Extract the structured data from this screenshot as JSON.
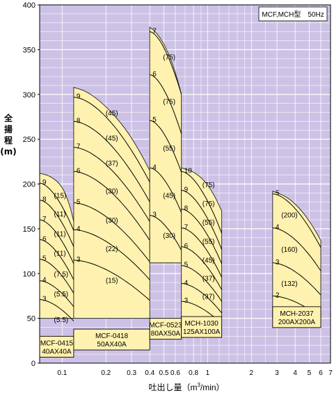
{
  "chart_data": {
    "type": "area",
    "title": "MCF,MCH型　50Hz",
    "ylabel": [
      "全",
      "揚",
      "程",
      "(m)"
    ],
    "xlabel_parts": {
      "prefix": "吐出し量（m",
      "sup": "3",
      "suffix": "/min）"
    },
    "x_scale": "log",
    "xlim": [
      0.07,
      7
    ],
    "ylim": [
      0,
      400
    ],
    "x_ticks": [
      {
        "v": 0.1,
        "label": "0.1"
      },
      {
        "v": 0.2,
        "label": "0.2"
      },
      {
        "v": 0.3,
        "label": "0.3"
      },
      {
        "v": 0.4,
        "label": "0.4"
      },
      {
        "v": 0.5,
        "label": "0.5"
      },
      {
        "v": 0.6,
        "label": "0.6"
      },
      {
        "v": 0.8,
        "label": "0.8"
      },
      {
        "v": 1,
        "label": "1"
      },
      {
        "v": 2,
        "label": "2"
      },
      {
        "v": 3,
        "label": "3"
      },
      {
        "v": 4,
        "label": "4"
      },
      {
        "v": 5,
        "label": "5"
      },
      {
        "v": 6,
        "label": "6"
      },
      {
        "v": 7,
        "label": "7"
      }
    ],
    "x_minor": [
      0.7,
      0.9,
      1.2,
      1.4,
      1.6,
      1.8,
      2.5
    ],
    "y_ticks": [
      0,
      50,
      100,
      150,
      200,
      250,
      300,
      350,
      400
    ],
    "y_gridlines": [
      10,
      20,
      30,
      40,
      60,
      70,
      80,
      90,
      110,
      120,
      130,
      140,
      160,
      170,
      180,
      190,
      210,
      220,
      230,
      240,
      260,
      270,
      280,
      290,
      310,
      320,
      330,
      340,
      360,
      370,
      380,
      390
    ],
    "colors": {
      "plot_bg": "#cdc2e6",
      "region_fill": "#fff2b0",
      "grid": "#ffffff",
      "curve": "#000000"
    },
    "models": [
      {
        "model": "MCF-0415",
        "size": "40AX40A",
        "x_range": [
          0.07,
          0.12
        ],
        "bottom": 50,
        "envelope": [
          [
            0.07,
            212
          ],
          [
            0.083,
            209
          ],
          [
            0.1,
            198
          ],
          [
            0.113,
            176
          ],
          [
            0.12,
            158
          ]
        ],
        "curves": [
          {
            "stages": "9",
            "kw": "(15)",
            "H0": 201,
            "Hend": 148
          },
          {
            "stages": "8",
            "kw": "(11)",
            "H0": 182,
            "Hend": 130
          },
          {
            "stages": "7",
            "kw": "(11)",
            "H0": 160,
            "Hend": 111
          },
          {
            "stages": "6",
            "kw": "(11)",
            "H0": 138,
            "Hend": 93
          },
          {
            "stages": "5",
            "kw": "(7.5)",
            "H0": 116,
            "Hend": 78
          },
          {
            "stages": "4",
            "kw": "(5.5)",
            "H0": 92,
            "Hend": 63
          },
          {
            "stages": "3",
            "kw": "(5.5)",
            "H0": 71,
            "Hend": 47
          }
        ]
      },
      {
        "model": "MCF-0418",
        "size": "50AX40A",
        "x_range": [
          0.12,
          0.4
        ],
        "bottom": 50,
        "envelope": [
          [
            0.12,
            308
          ],
          [
            0.15,
            303
          ],
          [
            0.2,
            287
          ],
          [
            0.27,
            263
          ],
          [
            0.34,
            237
          ],
          [
            0.4,
            215
          ]
        ],
        "curves": [
          {
            "stages": "9",
            "kw": "(45)",
            "H0": 297,
            "Hend": 202
          },
          {
            "stages": "8",
            "kw": "(45)",
            "H0": 270,
            "Hend": 180
          },
          {
            "stages": "7",
            "kw": "(37)",
            "H0": 241,
            "Hend": 158
          },
          {
            "stages": "6",
            "kw": "(30)",
            "H0": 214,
            "Hend": 137
          },
          {
            "stages": "5",
            "kw": "(30)",
            "H0": 179,
            "Hend": 113
          },
          {
            "stages": "4",
            "kw": "(22)",
            "H0": 149,
            "Hend": 93
          },
          {
            "stages": "3",
            "kw": "(15)",
            "H0": 115,
            "Hend": 70
          }
        ]
      },
      {
        "model": "MCF-0523",
        "size": "80AX50A",
        "x_range": [
          0.4,
          0.66
        ],
        "bottom": 112,
        "envelope": [
          [
            0.4,
            375
          ],
          [
            0.44,
            370
          ],
          [
            0.5,
            357
          ],
          [
            0.57,
            336
          ],
          [
            0.63,
            313
          ],
          [
            0.66,
            300
          ]
        ],
        "curves": [
          {
            "stages": "7",
            "kw": "(75)",
            "H0": 370,
            "Hend": 300
          },
          {
            "stages": "6",
            "kw": "(75)",
            "H0": 322,
            "Hend": 256
          },
          {
            "stages": "5",
            "kw": "(55)",
            "H0": 271,
            "Hend": 213
          },
          {
            "stages": "4",
            "kw": "(45)",
            "H0": 218,
            "Hend": 168
          },
          {
            "stages": "3",
            "kw": "(30)",
            "H0": 165,
            "Hend": 126
          }
        ]
      },
      {
        "model": "MCH-1030",
        "size": "125AX100A",
        "x_range": [
          0.66,
          1.25
        ],
        "bottom": 50,
        "envelope": [
          [
            0.66,
            218
          ],
          [
            0.8,
            214
          ],
          [
            0.95,
            204
          ],
          [
            1.1,
            189
          ],
          [
            1.25,
            170
          ]
        ],
        "curves": [
          {
            "stages": "10",
            "kw": "(75)",
            "H0": 214,
            "Hend": 145
          },
          {
            "stages": "9",
            "kw": "(75)",
            "H0": 193,
            "Hend": 127
          },
          {
            "stages": "8",
            "kw": "(55)",
            "H0": 172,
            "Hend": 111
          },
          {
            "stages": "7",
            "kw": "(55)",
            "H0": 151,
            "Hend": 96
          },
          {
            "stages": "6",
            "kw": "(45)",
            "H0": 130,
            "Hend": 82
          },
          {
            "stages": "5",
            "kw": "(37)",
            "H0": 109,
            "Hend": 69
          },
          {
            "stages": "4",
            "kw": "(37)",
            "H0": 89,
            "Hend": 56
          },
          {
            "stages": "3",
            "kw": "(30)",
            "H0": 69,
            "Hend": 44
          },
          {
            "stages": "",
            "kw": "(22)",
            "H0": 0,
            "Hend": 0
          }
        ]
      },
      {
        "model": "MCH-2037",
        "size": "200AX200A",
        "x_range": [
          2.8,
          6
        ],
        "bottom": 50,
        "envelope": [
          [
            2.8,
            192
          ],
          [
            3.5,
            186
          ],
          [
            4.3,
            173
          ],
          [
            5.2,
            155
          ],
          [
            6,
            137
          ]
        ],
        "curves": [
          {
            "stages": "5",
            "kw": "(200)",
            "H0": 189,
            "Hend": 129
          },
          {
            "stages": "4",
            "kw": "(160)",
            "H0": 151,
            "Hend": 103
          },
          {
            "stages": "3",
            "kw": "(132)",
            "H0": 112,
            "Hend": 76
          },
          {
            "stages": "2",
            "kw": "(90)",
            "H0": 75,
            "Hend": 51
          }
        ]
      }
    ]
  }
}
